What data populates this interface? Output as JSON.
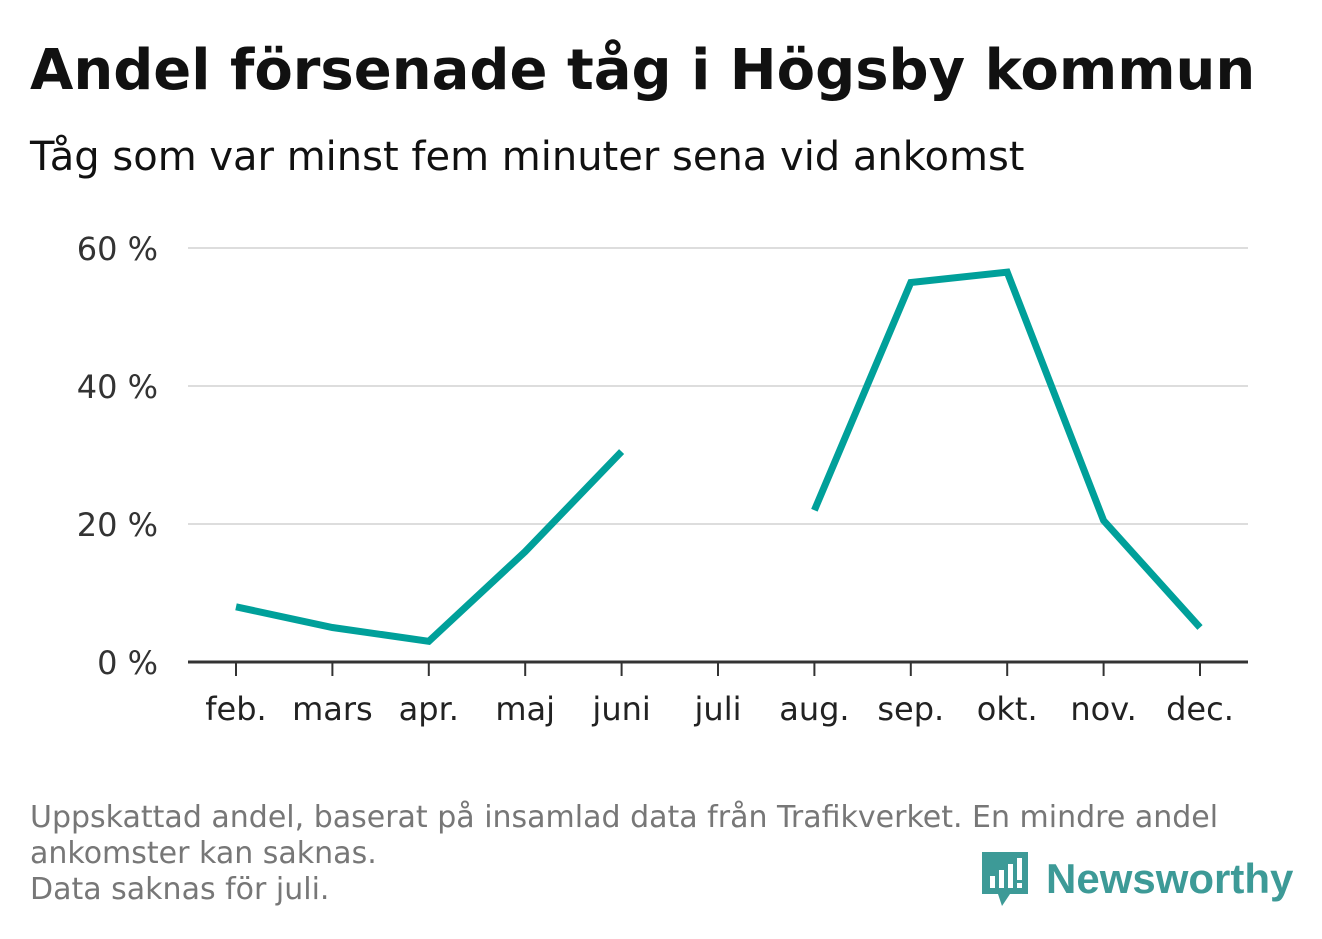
{
  "header": {
    "title": "Andel försenade tåg i Högsby kommun",
    "subtitle": "Tåg som var minst fem minuter sena vid ankomst"
  },
  "footer": {
    "line1": "Uppskattad andel, baserat på insamlad data från Trafikverket. En mindre andel",
    "line2": "ankomster kan saknas.",
    "line3": "Data saknas för juli."
  },
  "brand": {
    "name": "Newsworthy",
    "icon": "newsworthy-logo-icon",
    "color": "#3d9a97"
  },
  "colors": {
    "line": "#00a09a",
    "grid": "#dddddd",
    "axis": "#333333"
  },
  "chart_data": {
    "type": "line",
    "categories": [
      "feb.",
      "mars",
      "apr.",
      "maj",
      "juni",
      "juli",
      "aug.",
      "sep.",
      "okt.",
      "nov.",
      "dec."
    ],
    "series": [
      {
        "values": [
          8,
          5,
          3,
          16,
          30.5,
          null,
          22,
          55,
          56.5,
          20.5,
          5
        ]
      }
    ],
    "yticks": [
      "0 %",
      "20 %",
      "40 %",
      "60 %"
    ],
    "ytick_values": [
      0,
      20,
      40,
      60
    ],
    "ylim": [
      0,
      60
    ],
    "grid": true,
    "legend": "none"
  }
}
